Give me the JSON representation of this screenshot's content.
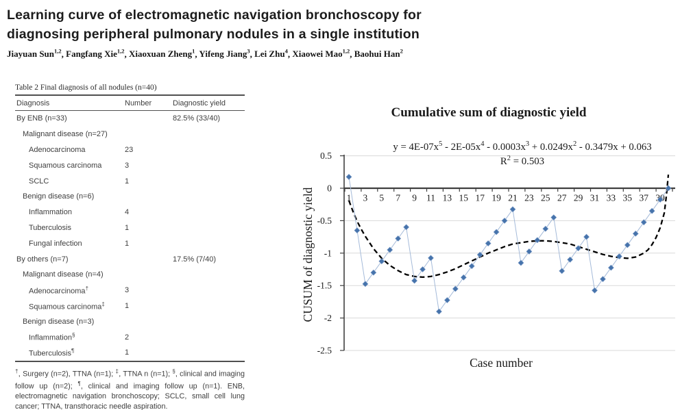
{
  "article": {
    "title_line1": "Learning curve of electromagnetic navigation bronchoscopy for",
    "title_line2": "diagnosing peripheral pulmonary nodules in a single institution",
    "authors": [
      {
        "name": "Jiayuan Sun",
        "sup": "1,2"
      },
      {
        "name": "Fangfang Xie",
        "sup": "1,2"
      },
      {
        "name": "Xiaoxuan Zheng",
        "sup": "1"
      },
      {
        "name": "Yifeng Jiang",
        "sup": "3"
      },
      {
        "name": "Lei Zhu",
        "sup": "4"
      },
      {
        "name": "Xiaowei Mao",
        "sup": "1,2"
      },
      {
        "name": "Baohui Han",
        "sup": "2"
      }
    ]
  },
  "table": {
    "caption": "Table 2 Final diagnosis of all nodules (n=40)",
    "columns": [
      "Diagnosis",
      "Number",
      "Diagnostic yield"
    ],
    "rows": [
      {
        "label": "By ENB (n=33)",
        "indent": 0,
        "number": "",
        "yield": "82.5% (33/40)"
      },
      {
        "label": "Malignant disease (n=27)",
        "indent": 1,
        "number": "",
        "yield": ""
      },
      {
        "label": "Adenocarcinoma",
        "indent": 2,
        "number": "23",
        "yield": ""
      },
      {
        "label": "Squamous carcinoma",
        "indent": 2,
        "number": "3",
        "yield": ""
      },
      {
        "label": "SCLC",
        "indent": 2,
        "number": "1",
        "yield": ""
      },
      {
        "label": "Benign disease (n=6)",
        "indent": 1,
        "number": "",
        "yield": ""
      },
      {
        "label": "Inflammation",
        "indent": 2,
        "number": "4",
        "yield": ""
      },
      {
        "label": "Tuberculosis",
        "indent": 2,
        "number": "1",
        "yield": ""
      },
      {
        "label": "Fungal infection",
        "indent": 2,
        "number": "1",
        "yield": ""
      },
      {
        "label": "By others (n=7)",
        "indent": 0,
        "number": "",
        "yield": "17.5% (7/40)"
      },
      {
        "label": "Malignant disease (n=4)",
        "indent": 1,
        "number": "",
        "yield": ""
      },
      {
        "label": "Adenocarcinoma",
        "sup": "†",
        "indent": 2,
        "number": "3",
        "yield": ""
      },
      {
        "label": "Squamous carcinoma",
        "sup": "‡",
        "indent": 2,
        "number": "1",
        "yield": ""
      },
      {
        "label": "Benign disease (n=3)",
        "indent": 1,
        "number": "",
        "yield": ""
      },
      {
        "label": "Inflammation",
        "sup": "§",
        "indent": 2,
        "number": "2",
        "yield": ""
      },
      {
        "label": "Tuberculosis",
        "sup": "¶",
        "indent": 2,
        "number": "1",
        "yield": ""
      }
    ],
    "footnote": "†, Surgery (n=2), TTNA (n=1); ‡, TTNA n (n=1); §, clinical and imaging follow up (n=2); ¶, clinical and imaging follow up (n=1). ENB, electromagnetic navigation bronchoscopy; SCLC, small cell lung cancer; TTNA, transthoracic needle aspiration."
  },
  "chart_data": {
    "type": "line",
    "title": "Cumulative sum of diagnostic yield",
    "equation": "y = 4E-07x⁵ - 2E-05x⁴ - 0.0003x³ + 0.0249x² - 0.3479x + 0.063",
    "r_squared": "R² = 0.503",
    "xlabel": "Case number",
    "ylabel": "CUSUM of diagnostic yield",
    "xlim": [
      1,
      40
    ],
    "ylim": [
      -2.5,
      0.5
    ],
    "grid": true,
    "legend": false,
    "yticks": [
      0.5,
      0,
      -0.5,
      -1,
      -1.5,
      -2,
      -2.5
    ],
    "ytick_labels": [
      "0.5",
      "0",
      "-0.5",
      "-1",
      "-1.5",
      "-2",
      "-2.5"
    ],
    "xtick_labels": [
      "1",
      "3",
      "5",
      "7",
      "9",
      "11",
      "13",
      "15",
      "17",
      "19",
      "21",
      "23",
      "25",
      "27",
      "29",
      "31",
      "33",
      "35",
      "37",
      "39"
    ],
    "x": [
      1,
      2,
      3,
      4,
      5,
      6,
      7,
      8,
      9,
      10,
      11,
      12,
      13,
      14,
      15,
      16,
      17,
      18,
      19,
      20,
      21,
      22,
      23,
      24,
      25,
      26,
      27,
      28,
      29,
      30,
      31,
      32,
      33,
      34,
      35,
      36,
      37,
      38,
      39,
      40
    ],
    "series": [
      {
        "name": "CUSUM of diagnostic yield",
        "values": [
          0.175,
          -0.65,
          -1.475,
          -1.3,
          -1.125,
          -0.95,
          -0.775,
          -0.6,
          -1.425,
          -1.25,
          -1.075,
          -1.9,
          -1.725,
          -1.55,
          -1.375,
          -1.2,
          -1.025,
          -0.85,
          -0.675,
          -0.5,
          -0.325,
          -1.15,
          -0.975,
          -0.8,
          -0.625,
          -0.45,
          -1.275,
          -1.1,
          -0.925,
          -0.75,
          -1.575,
          -1.4,
          -1.225,
          -1.05,
          -0.875,
          -0.7,
          -0.525,
          -0.35,
          -0.175,
          0
        ]
      }
    ],
    "trend": {
      "name": "5th-order polynomial trendline",
      "points": [
        [
          1,
          -0.19
        ],
        [
          1.5,
          -0.36
        ],
        [
          2,
          -0.51
        ],
        [
          2.5,
          -0.63
        ],
        [
          3,
          -0.74
        ],
        [
          4,
          -0.93
        ],
        [
          5,
          -1.08
        ],
        [
          6,
          -1.19
        ],
        [
          7,
          -1.27
        ],
        [
          8,
          -1.33
        ],
        [
          9,
          -1.36
        ],
        [
          10,
          -1.37
        ],
        [
          11,
          -1.36
        ],
        [
          12,
          -1.33
        ],
        [
          13,
          -1.29
        ],
        [
          14,
          -1.24
        ],
        [
          15,
          -1.18
        ],
        [
          16,
          -1.12
        ],
        [
          17,
          -1.06
        ],
        [
          18,
          -1.0
        ],
        [
          19,
          -0.95
        ],
        [
          20,
          -0.9
        ],
        [
          21,
          -0.86
        ],
        [
          22,
          -0.84
        ],
        [
          23,
          -0.82
        ],
        [
          24,
          -0.81
        ],
        [
          25,
          -0.81
        ],
        [
          26,
          -0.82
        ],
        [
          27,
          -0.84
        ],
        [
          28,
          -0.86
        ],
        [
          29,
          -0.9
        ],
        [
          30,
          -0.94
        ],
        [
          31,
          -0.98
        ],
        [
          32,
          -1.02
        ],
        [
          33,
          -1.05
        ],
        [
          34,
          -1.07
        ],
        [
          35,
          -1.08
        ],
        [
          36,
          -1.06
        ],
        [
          37,
          -1.0
        ],
        [
          37.5,
          -0.95
        ],
        [
          38,
          -0.87
        ],
        [
          38.5,
          -0.76
        ],
        [
          39,
          -0.61
        ],
        [
          39.5,
          -0.38
        ],
        [
          39.75,
          -0.12
        ],
        [
          40,
          0.21
        ]
      ]
    },
    "colors": {
      "marker": "#4673ab",
      "marker_edge": "#7c9cc8",
      "series_line": "#a4bad9",
      "trend": "#000000",
      "grid": "#d9d9d9",
      "axis": "#3f3f3f",
      "tick_text": "#333333"
    }
  }
}
